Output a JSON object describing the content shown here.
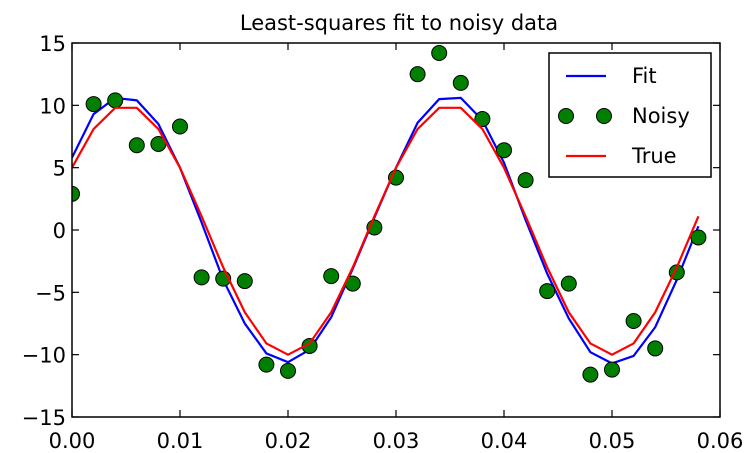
{
  "chart_data": {
    "type": "line",
    "title": "Least-squares fit to noisy data",
    "xlabel": "",
    "ylabel": "",
    "xlim": [
      0.0,
      0.06
    ],
    "ylim": [
      -15,
      15
    ],
    "xticks": [
      0.0,
      0.01,
      0.02,
      0.03,
      0.04,
      0.05,
      0.06
    ],
    "xtick_labels": [
      "0.00",
      "0.01",
      "0.02",
      "0.03",
      "0.04",
      "0.05",
      "0.06"
    ],
    "yticks": [
      -15,
      -10,
      -5,
      0,
      5,
      10,
      15
    ],
    "ytick_labels": [
      "−15",
      "−10",
      "−5",
      "0",
      "5",
      "10",
      "15"
    ],
    "grid": false,
    "legend_position": "top-right",
    "x": [
      0.0,
      0.002,
      0.004,
      0.006,
      0.008,
      0.01,
      0.012,
      0.014,
      0.016,
      0.018,
      0.02,
      0.022,
      0.024,
      0.026,
      0.028,
      0.03,
      0.032,
      0.034,
      0.036,
      0.038,
      0.04,
      0.042,
      0.044,
      0.046,
      0.048,
      0.05,
      0.052,
      0.054,
      0.056,
      0.058
    ],
    "series": [
      {
        "name": "Fit",
        "style": "line",
        "color": "#0000ff",
        "values": [
          5.8,
          9.3,
          10.6,
          10.4,
          8.5,
          5.0,
          0.6,
          -4.0,
          -7.5,
          -9.9,
          -10.6,
          -9.6,
          -7.0,
          -3.1,
          1.0,
          5.0,
          8.6,
          10.5,
          10.6,
          8.8,
          5.4,
          0.8,
          -3.5,
          -7.1,
          -9.8,
          -10.7,
          -10.1,
          -7.8,
          -4.0,
          0.3
        ]
      },
      {
        "name": "Noisy",
        "style": "markers",
        "color": "#007f00",
        "values": [
          2.9,
          10.1,
          10.4,
          6.8,
          6.9,
          8.3,
          -3.8,
          -3.9,
          -4.1,
          -10.8,
          -11.3,
          -9.3,
          -3.7,
          -4.3,
          0.2,
          4.2,
          12.5,
          14.2,
          11.8,
          8.9,
          6.4,
          4.0,
          -4.9,
          -4.3,
          -11.6,
          -11.2,
          -7.3,
          -9.5,
          -3.4,
          -0.6
        ]
      },
      {
        "name": "True",
        "style": "line",
        "color": "#ff0000",
        "values": [
          5.0,
          8.1,
          9.8,
          9.8,
          8.1,
          5.0,
          1.1,
          -3.0,
          -6.6,
          -9.1,
          -10.0,
          -9.1,
          -6.6,
          -3.0,
          1.1,
          5.0,
          8.1,
          9.8,
          9.8,
          8.1,
          5.0,
          1.1,
          -3.0,
          -6.6,
          -9.1,
          -10.0,
          -9.1,
          -6.6,
          -3.0,
          1.1
        ]
      }
    ]
  }
}
